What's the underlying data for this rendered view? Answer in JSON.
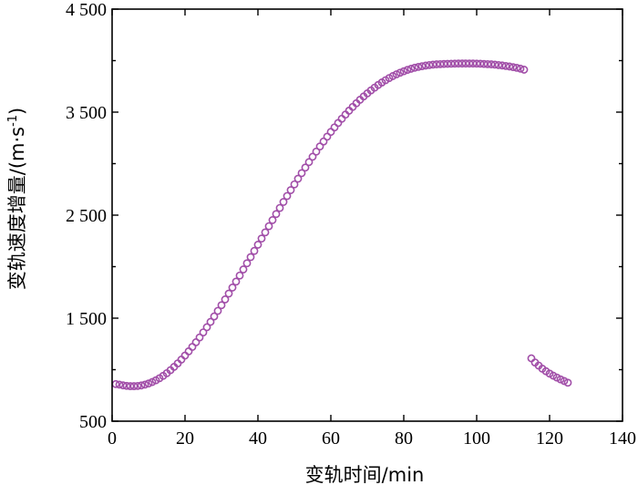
{
  "chart_data": {
    "type": "scatter",
    "title": "",
    "xlabel": "变轨时间/min",
    "ylabel_main": "变轨速度增量/(m·s",
    "ylabel_sup": "-1",
    "ylabel_end": ")",
    "xlim": [
      0,
      140
    ],
    "ylim": [
      500,
      4500
    ],
    "x_ticks": [
      0,
      20,
      40,
      60,
      80,
      100,
      120,
      140
    ],
    "x_tick_labels": [
      "0",
      "20",
      "40",
      "60",
      "80",
      "100",
      "120",
      "140"
    ],
    "y_ticks": [
      500,
      1500,
      2500,
      3500,
      4500
    ],
    "y_tick_labels": [
      "500",
      "1 500",
      "2 500",
      "3 500",
      "4 500"
    ],
    "marker": "open-circle",
    "color": "#a14ea8",
    "grid": false,
    "legend": "none",
    "series": [
      {
        "x": [
          1,
          2,
          3,
          4,
          5,
          6,
          7,
          8,
          9,
          10,
          11,
          12,
          13,
          14,
          15,
          16,
          17,
          18,
          19,
          20,
          21,
          22,
          23,
          24,
          25,
          26,
          27,
          28,
          29,
          30,
          31,
          32,
          33,
          34,
          35,
          36,
          37,
          38,
          39,
          40,
          41,
          42,
          43,
          44,
          45,
          46,
          47,
          48,
          49,
          50,
          51,
          52,
          53,
          54,
          55,
          56,
          57,
          58,
          59,
          60,
          61,
          62,
          63,
          64,
          65,
          66,
          67,
          68,
          69,
          70,
          71,
          72,
          73,
          74,
          75,
          76,
          77,
          78,
          79,
          80,
          81,
          82,
          83,
          84,
          85,
          86,
          87,
          88,
          89,
          90,
          91,
          92,
          93,
          94,
          95,
          96,
          97,
          98,
          99,
          100,
          101,
          102,
          103,
          104,
          105,
          106,
          107,
          108,
          109,
          110,
          111,
          112,
          113,
          115,
          116,
          117,
          118,
          119,
          120,
          121,
          122,
          123,
          124,
          125
        ],
        "y": [
          860,
          855,
          848,
          843,
          840,
          840,
          842,
          847,
          855,
          866,
          880,
          897,
          917,
          940,
          966,
          995,
          1027,
          1061,
          1098,
          1137,
          1178,
          1221,
          1266,
          1313,
          1362,
          1412,
          1464,
          1517,
          1571,
          1626,
          1682,
          1739,
          1797,
          1855,
          1914,
          1973,
          2033,
          2093,
          2153,
          2213,
          2273,
          2333,
          2393,
          2452,
          2511,
          2570,
          2628,
          2686,
          2743,
          2799,
          2854,
          2908,
          2962,
          3015,
          3067,
          3117,
          3167,
          3215,
          3262,
          3308,
          3352,
          3395,
          3436,
          3476,
          3514,
          3551,
          3586,
          3620,
          3652,
          3682,
          3711,
          3738,
          3764,
          3788,
          3810,
          3831,
          3850,
          3867,
          3883,
          3897,
          3910,
          3921,
          3931,
          3939,
          3946,
          3952,
          3957,
          3961,
          3964,
          3966,
          3968,
          3969,
          3970,
          3971,
          3972,
          3972,
          3972,
          3972,
          3972,
          3971,
          3970,
          3968,
          3966,
          3964,
          3961,
          3957,
          3953,
          3948,
          3943,
          3937,
          3930,
          3922,
          3912,
          1110,
          1070,
          1040,
          1010,
          985,
          962,
          942,
          924,
          906,
          890,
          874
        ]
      }
    ]
  }
}
